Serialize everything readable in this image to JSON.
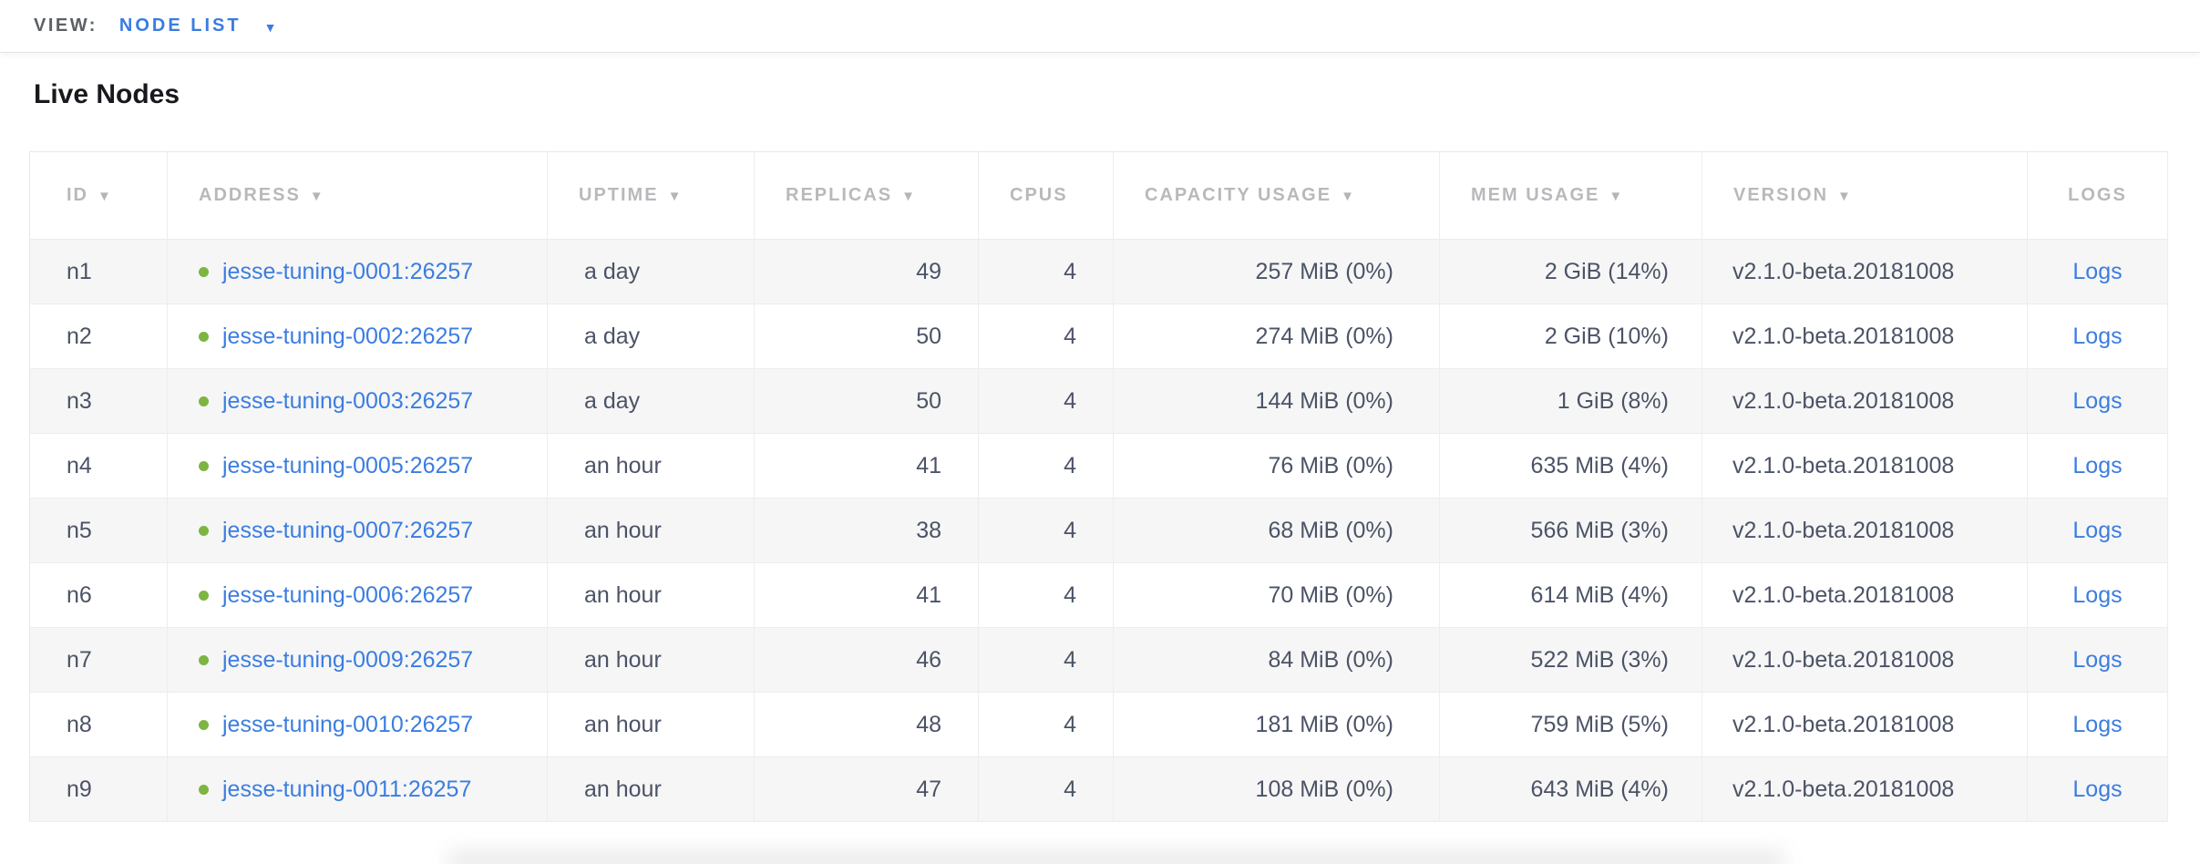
{
  "view_bar": {
    "label": "VIEW:",
    "selected_view": "NODE LIST"
  },
  "heading": "Live Nodes",
  "icons": {
    "sort_caret": "▼",
    "dropdown_caret": "▼"
  },
  "colors": {
    "link_blue": "#3b7de0",
    "status_live_green": "#7cb542",
    "header_text_gray": "#b7b9bc",
    "cell_text": "#4b5366",
    "zebra_row": "#f6f6f6"
  },
  "table": {
    "columns": [
      {
        "key": "id",
        "label": "ID",
        "sortable": true,
        "align": "left"
      },
      {
        "key": "address",
        "label": "ADDRESS",
        "sortable": true,
        "align": "left"
      },
      {
        "key": "uptime",
        "label": "UPTIME",
        "sortable": true,
        "align": "left"
      },
      {
        "key": "replicas",
        "label": "REPLICAS",
        "sortable": true,
        "align": "right"
      },
      {
        "key": "cpus",
        "label": "CPUS",
        "sortable": false,
        "align": "right"
      },
      {
        "key": "capacity",
        "label": "CAPACITY USAGE",
        "sortable": true,
        "align": "right"
      },
      {
        "key": "mem",
        "label": "MEM USAGE",
        "sortable": true,
        "align": "right"
      },
      {
        "key": "version",
        "label": "VERSION",
        "sortable": true,
        "align": "left"
      },
      {
        "key": "logs",
        "label": "LOGS",
        "sortable": false,
        "align": "center"
      }
    ],
    "rows": [
      {
        "id": "n1",
        "status": "live",
        "address": "jesse-tuning-0001:26257",
        "uptime": "a day",
        "replicas": "49",
        "cpus": "4",
        "capacity": "257 MiB (0%)",
        "mem": "2 GiB (14%)",
        "version": "v2.1.0-beta.20181008",
        "logs_label": "Logs"
      },
      {
        "id": "n2",
        "status": "live",
        "address": "jesse-tuning-0002:26257",
        "uptime": "a day",
        "replicas": "50",
        "cpus": "4",
        "capacity": "274 MiB (0%)",
        "mem": "2 GiB (10%)",
        "version": "v2.1.0-beta.20181008",
        "logs_label": "Logs"
      },
      {
        "id": "n3",
        "status": "live",
        "address": "jesse-tuning-0003:26257",
        "uptime": "a day",
        "replicas": "50",
        "cpus": "4",
        "capacity": "144 MiB (0%)",
        "mem": "1 GiB (8%)",
        "version": "v2.1.0-beta.20181008",
        "logs_label": "Logs"
      },
      {
        "id": "n4",
        "status": "live",
        "address": "jesse-tuning-0005:26257",
        "uptime": "an hour",
        "replicas": "41",
        "cpus": "4",
        "capacity": "76 MiB (0%)",
        "mem": "635 MiB (4%)",
        "version": "v2.1.0-beta.20181008",
        "logs_label": "Logs"
      },
      {
        "id": "n5",
        "status": "live",
        "address": "jesse-tuning-0007:26257",
        "uptime": "an hour",
        "replicas": "38",
        "cpus": "4",
        "capacity": "68 MiB (0%)",
        "mem": "566 MiB (3%)",
        "version": "v2.1.0-beta.20181008",
        "logs_label": "Logs"
      },
      {
        "id": "n6",
        "status": "live",
        "address": "jesse-tuning-0006:26257",
        "uptime": "an hour",
        "replicas": "41",
        "cpus": "4",
        "capacity": "70 MiB (0%)",
        "mem": "614 MiB (4%)",
        "version": "v2.1.0-beta.20181008",
        "logs_label": "Logs"
      },
      {
        "id": "n7",
        "status": "live",
        "address": "jesse-tuning-0009:26257",
        "uptime": "an hour",
        "replicas": "46",
        "cpus": "4",
        "capacity": "84 MiB (0%)",
        "mem": "522 MiB (3%)",
        "version": "v2.1.0-beta.20181008",
        "logs_label": "Logs"
      },
      {
        "id": "n8",
        "status": "live",
        "address": "jesse-tuning-0010:26257",
        "uptime": "an hour",
        "replicas": "48",
        "cpus": "4",
        "capacity": "181 MiB (0%)",
        "mem": "759 MiB (5%)",
        "version": "v2.1.0-beta.20181008",
        "logs_label": "Logs"
      },
      {
        "id": "n9",
        "status": "live",
        "address": "jesse-tuning-0011:26257",
        "uptime": "an hour",
        "replicas": "47",
        "cpus": "4",
        "capacity": "108 MiB (0%)",
        "mem": "643 MiB (4%)",
        "version": "v2.1.0-beta.20181008",
        "logs_label": "Logs"
      }
    ]
  }
}
